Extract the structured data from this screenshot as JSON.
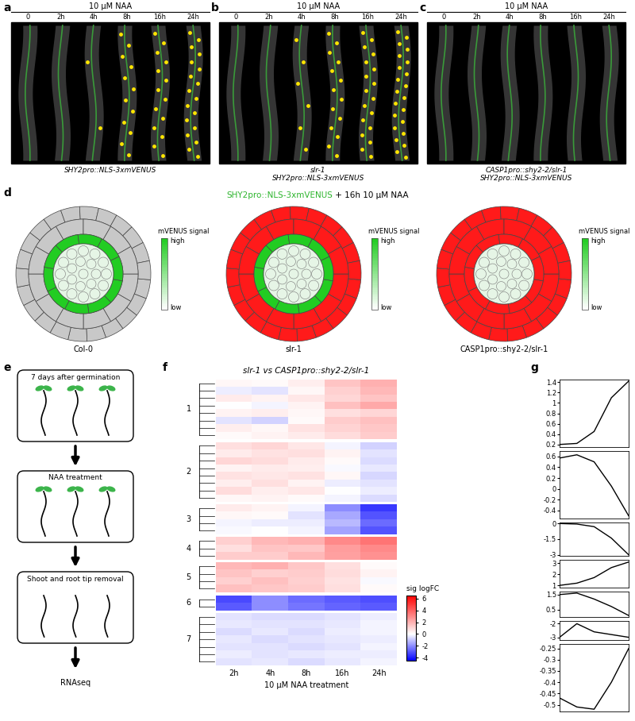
{
  "micrographs": [
    {
      "letter": "a",
      "treatment": "10 μM NAA",
      "times": [
        "0",
        "2h",
        "4h",
        "8h",
        "16h",
        "24h"
      ],
      "dot_counts": [
        0,
        0,
        2,
        12,
        14,
        18
      ],
      "caption": "SHY2pro::NLS-3xmVENUS"
    },
    {
      "letter": "b",
      "treatment": "10 μM NAA",
      "times": [
        "0",
        "2h",
        "4h",
        "8h",
        "16h",
        "24h"
      ],
      "dot_counts": [
        0,
        0,
        6,
        14,
        18,
        22
      ],
      "caption": "slr-1\nSHY2pro::NLS-3xmVENUS"
    },
    {
      "letter": "c",
      "treatment": "10 μM NAA",
      "times": [
        "0",
        "2h",
        "4h",
        "8h",
        "16h",
        "24h"
      ],
      "dot_counts": [
        0,
        0,
        0,
        0,
        0,
        0
      ],
      "caption": "CASP1pro::shy2-2/slr-1\nSHY2pro::NLS-3xmVENUS"
    }
  ],
  "cross_sections": {
    "letter": "d",
    "title_parts": [
      {
        "text": "SHY2pro::NLS-3xmVENUS",
        "color": "#2db52d"
      },
      {
        "text": " + 16h 10 μM NAA",
        "color": "#000000"
      }
    ],
    "colorbar": {
      "label": "mVENUS signal",
      "high": "high",
      "low": "low",
      "colors": [
        "#ffffff",
        "#22cc22"
      ]
    },
    "sections": [
      {
        "label": "Col-0",
        "colors": {
          "epidermis": "#c8c8c8",
          "cortex": "#c8c8c8",
          "endodermis": "#22cc22",
          "stele": "#e6f5e6"
        }
      },
      {
        "label": "slr-1",
        "colors": {
          "epidermis": "#ff1a1a",
          "cortex": "#ff1a1a",
          "endodermis": "#22cc22",
          "stele": "#e6f5e6"
        }
      },
      {
        "label": "CASP1pro::shy2-2/slr-1",
        "colors": {
          "epidermis": "#ff1a1a",
          "cortex": "#ff1a1a",
          "endodermis": "#ff1a1a",
          "stele": "#e6f5e6"
        }
      }
    ]
  },
  "workflow": {
    "letter": "e",
    "steps": [
      "7 days after germination",
      "NAA treatment",
      "Shoot and root tip removal",
      "RNAseq"
    ]
  },
  "chart_data": [
    {
      "type": "heatmap",
      "letter": "f",
      "title": "slr-1 vs CASP1pro::shy2-2/slr-1",
      "categories": [
        "2h",
        "4h",
        "8h",
        "16h",
        "24h"
      ],
      "xlabel": "10 μM NAA treatment",
      "tick_labels": "x",
      "clusters": [
        {
          "name": "1",
          "rows": [
            [
              0.2,
              0.1,
              0.4,
              1.5,
              2.0
            ],
            [
              -0.3,
              -0.5,
              0.2,
              1.2,
              1.8
            ],
            [
              0.5,
              0.3,
              0.6,
              1.0,
              1.5
            ],
            [
              0.0,
              -0.2,
              0.3,
              1.6,
              2.2
            ],
            [
              0.3,
              0.4,
              0.2,
              0.8,
              1.0
            ],
            [
              -0.5,
              -0.8,
              0.1,
              1.3,
              1.6
            ],
            [
              0.4,
              0.2,
              0.7,
              1.1,
              1.4
            ],
            [
              0.1,
              0.3,
              0.5,
              0.9,
              1.3
            ]
          ]
        },
        {
          "name": "2",
          "rows": [
            [
              0.8,
              1.0,
              0.6,
              -0.2,
              -0.8
            ],
            [
              0.5,
              0.7,
              0.8,
              0.3,
              -0.5
            ],
            [
              1.0,
              0.9,
              0.5,
              0.1,
              -0.6
            ],
            [
              0.3,
              0.5,
              0.4,
              -0.1,
              -0.4
            ],
            [
              0.7,
              0.6,
              0.7,
              0.2,
              -0.7
            ],
            [
              0.4,
              0.8,
              0.3,
              -0.3,
              -0.5
            ],
            [
              0.9,
              0.4,
              0.6,
              0.0,
              -0.3
            ],
            [
              0.2,
              0.3,
              0.1,
              -0.2,
              -0.6
            ]
          ]
        },
        {
          "name": "3",
          "rows": [
            [
              0.5,
              0.3,
              -0.2,
              -2.0,
              -3.5
            ],
            [
              0.2,
              0.1,
              -0.5,
              -1.5,
              -3.0
            ],
            [
              -0.2,
              -0.3,
              -0.3,
              -1.2,
              -2.6
            ],
            [
              -0.1,
              0.0,
              -0.2,
              -1.6,
              -3.0
            ]
          ]
        },
        {
          "name": "4",
          "rows": [
            [
              1.2,
              1.8,
              2.0,
              3.0,
              3.5
            ],
            [
              0.8,
              1.5,
              1.4,
              2.5,
              3.0
            ],
            [
              1.3,
              1.3,
              1.8,
              2.4,
              2.8
            ]
          ]
        },
        {
          "name": "5",
          "rows": [
            [
              1.8,
              2.0,
              1.4,
              0.8,
              0.1
            ],
            [
              1.5,
              1.2,
              1.3,
              0.9,
              0.3
            ],
            [
              1.2,
              1.6,
              1.2,
              0.7,
              -0.1
            ],
            [
              1.6,
              1.4,
              1.3,
              0.8,
              0.1
            ]
          ]
        },
        {
          "name": "6",
          "rows": [
            [
              -3.2,
              -2.0,
              -2.6,
              -2.9,
              -3.1
            ],
            [
              -2.9,
              -2.0,
              -2.4,
              -2.7,
              -2.9
            ]
          ]
        },
        {
          "name": "7",
          "rows": [
            [
              -0.5,
              -0.6,
              -0.6,
              -0.5,
              -0.3
            ],
            [
              -0.4,
              -0.5,
              -0.5,
              -0.4,
              -0.2
            ],
            [
              -0.6,
              -0.4,
              -0.6,
              -0.3,
              -0.2
            ],
            [
              -0.4,
              -0.6,
              -0.5,
              -0.4,
              -0.3
            ],
            [
              -0.5,
              -0.5,
              -0.6,
              -0.5,
              -0.2
            ],
            [
              -0.3,
              -0.5,
              -0.4,
              -0.3,
              -0.3
            ],
            [
              -0.5,
              -0.4,
              -0.6,
              -0.4,
              -0.2
            ]
          ]
        }
      ],
      "colorbar": {
        "label": "sig logFC",
        "clim": [
          -4.5,
          6.5
        ],
        "center": 0,
        "ticks": [
          6,
          4,
          2,
          0,
          -2,
          -4
        ],
        "colors": [
          "#0000ff",
          "#ffffff",
          "#ff0000"
        ]
      }
    },
    {
      "type": "line",
      "letter": "g",
      "charts": [
        {
          "values": [
            0.2,
            0.22,
            0.45,
            1.1,
            1.42
          ],
          "ylim": [
            0.15,
            1.45
          ],
          "yticks": [
            0.2,
            0.4,
            0.6,
            0.8,
            1,
            1.2,
            1.4
          ],
          "tick_labels": "y",
          "color": "#000000"
        },
        {
          "values": [
            0.57,
            0.63,
            0.5,
            0.05,
            -0.5
          ],
          "ylim": [
            -0.55,
            0.7
          ],
          "yticks": [
            0.6,
            0.4,
            0.2,
            0,
            -0.2,
            -0.4
          ],
          "tick_labels": "y",
          "color": "#000000"
        },
        {
          "values": [
            0,
            -0.05,
            -0.3,
            -1.4,
            -3.0
          ],
          "ylim": [
            -3.1,
            0.1
          ],
          "yticks": [
            0,
            -1.5,
            -3
          ],
          "tick_labels": "y",
          "color": "#000000"
        },
        {
          "values": [
            1.0,
            1.2,
            1.7,
            2.6,
            3.1
          ],
          "ylim": [
            0.8,
            3.3
          ],
          "yticks": [
            3,
            2,
            1
          ],
          "tick_labels": "y",
          "color": "#000000"
        },
        {
          "values": [
            1.5,
            1.6,
            1.2,
            0.7,
            0.1
          ],
          "ylim": [
            0,
            1.7
          ],
          "yticks": [
            1.5,
            0.5
          ],
          "tick_labels": "y",
          "color": "#000000"
        },
        {
          "values": [
            -3.0,
            -2.0,
            -2.6,
            -2.8,
            -3.0
          ],
          "ylim": [
            -3.2,
            -1.8
          ],
          "yticks": [
            -2,
            -3
          ],
          "tick_labels": "y",
          "color": "#000000"
        },
        {
          "values": [
            -0.47,
            -0.51,
            -0.52,
            -0.4,
            -0.25
          ],
          "ylim": [
            -0.53,
            -0.23
          ],
          "yticks": [
            -0.25,
            -0.3,
            -0.35,
            -0.4,
            -0.45,
            -0.5
          ],
          "tick_labels": "y",
          "color": "#000000"
        }
      ]
    }
  ]
}
